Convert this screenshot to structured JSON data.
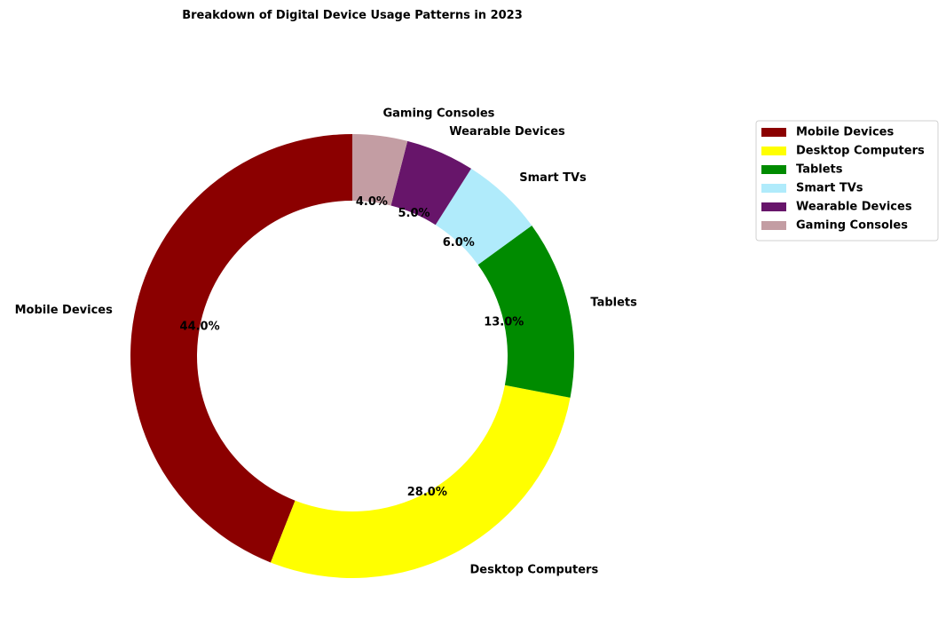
{
  "chart_data": {
    "type": "pie",
    "title": "Breakdown of Digital Device Usage Patterns in 2023",
    "donut": true,
    "start_angle_deg": 90,
    "direction": "counterclockwise",
    "legend_position": "upper-right",
    "categories": [
      "Mobile Devices",
      "Desktop Computers",
      "Tablets",
      "Smart TVs",
      "Wearable Devices",
      "Gaming Consoles"
    ],
    "values": [
      44,
      28,
      13,
      6,
      5,
      4
    ],
    "percent_labels": [
      "44.0%",
      "28.0%",
      "13.0%",
      "6.0%",
      "5.0%",
      "4.0%"
    ],
    "colors": [
      "#8b0000",
      "#ffff00",
      "#008b00",
      "#b0ebfb",
      "#67156a",
      "#c39da3"
    ]
  }
}
